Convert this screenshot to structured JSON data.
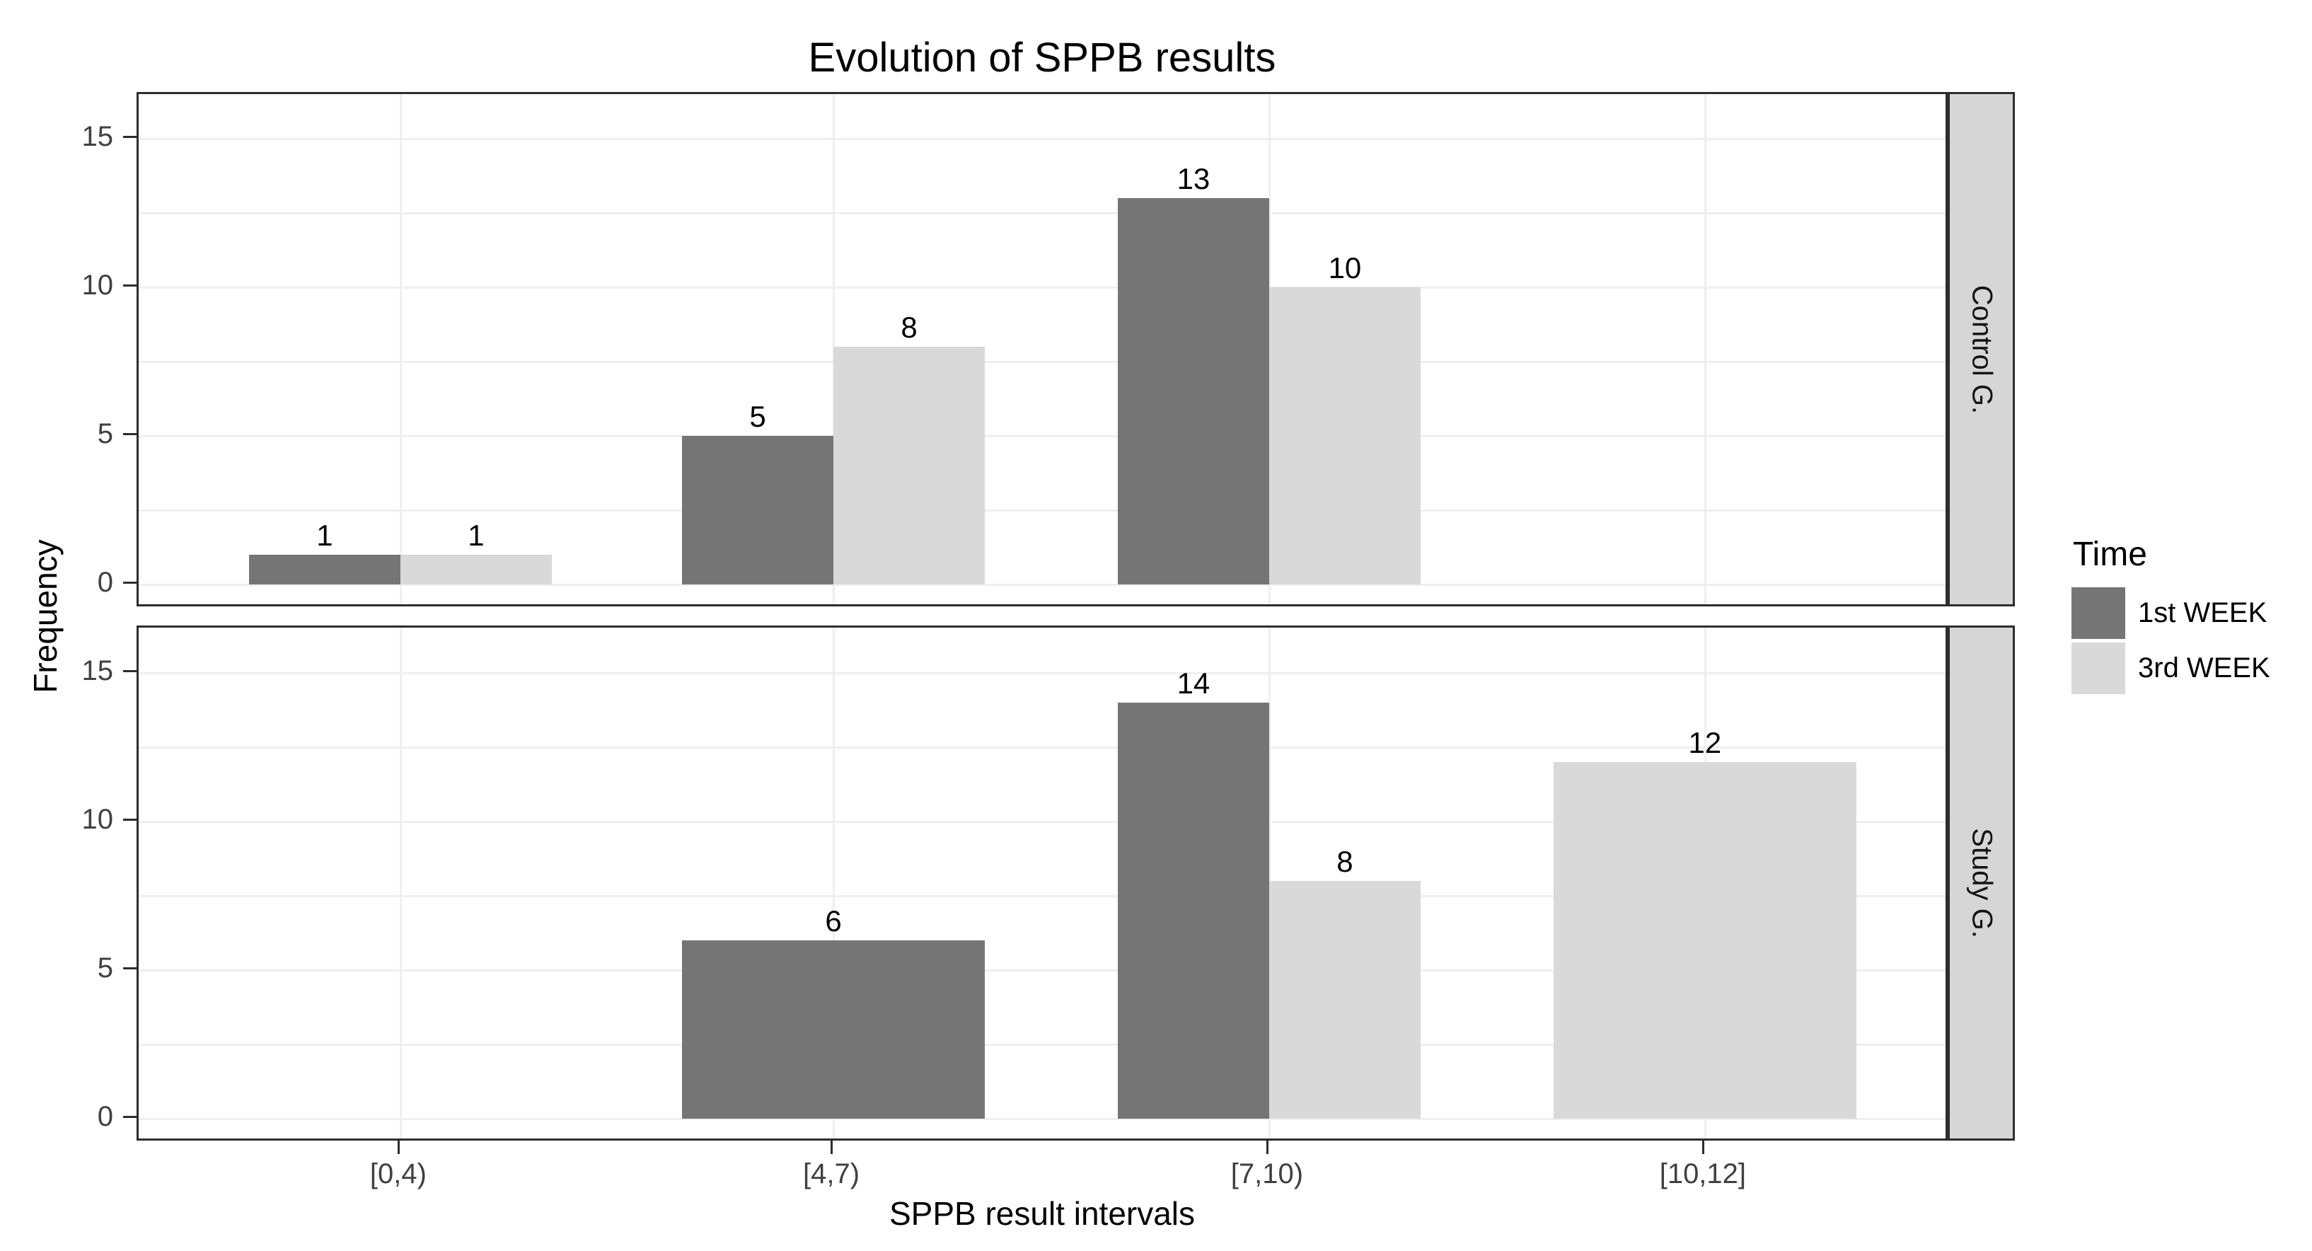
{
  "title": "Evolution of SPPB results",
  "y_axis": {
    "title": "Frequency",
    "tick_labels": [
      "0",
      "5",
      "10",
      "15"
    ]
  },
  "x_axis": {
    "title": "SPPB result intervals",
    "tick_labels": [
      "[0,4)",
      "[4,7)",
      "[7,10)",
      "[10,12]"
    ]
  },
  "legend": {
    "title": "Time",
    "entries": [
      {
        "label": "1st WEEK",
        "color": "#757575"
      },
      {
        "label": "3rd WEEK",
        "color": "#d9d9d9"
      }
    ]
  },
  "facets": [
    {
      "label": "Control G."
    },
    {
      "label": "Study G."
    }
  ],
  "style_colors": {
    "panel_border": "#2d2d2d",
    "gridline": "#efefef",
    "strip_fill": "#d6d6d6",
    "tick_text": "#404040",
    "bar_dark": "#757575",
    "bar_light": "#d9d9d9"
  },
  "chart_data": {
    "type": "bar",
    "subtype": "grouped-dodged, faceted rows",
    "title": "Evolution of SPPB results",
    "xlabel": "SPPB result intervals",
    "ylabel": "Frequency",
    "categories": [
      "[0,4)",
      "[4,7)",
      "[7,10)",
      "[10,12]"
    ],
    "facets": [
      {
        "name": "Control G.",
        "series": [
          {
            "name": "1st WEEK",
            "values": [
              1,
              5,
              13,
              null
            ]
          },
          {
            "name": "3rd WEEK",
            "values": [
              1,
              8,
              10,
              null
            ]
          }
        ]
      },
      {
        "name": "Study G.",
        "series": [
          {
            "name": "1st WEEK",
            "values": [
              null,
              6,
              14,
              null
            ]
          },
          {
            "name": "3rd WEEK",
            "values": [
              null,
              null,
              8,
              12
            ]
          }
        ]
      }
    ],
    "colors": {
      "1st WEEK": "#757575",
      "3rd WEEK": "#d9d9d9"
    },
    "ylim": [
      0,
      15
    ],
    "y_ticks": [
      0,
      5,
      10,
      15
    ],
    "grid": "major and minor horizontal every 2.5 units + vertical at category centers, very light gray",
    "legend_position": "right",
    "legend_title": "Time",
    "bar_value_labels": true
  }
}
